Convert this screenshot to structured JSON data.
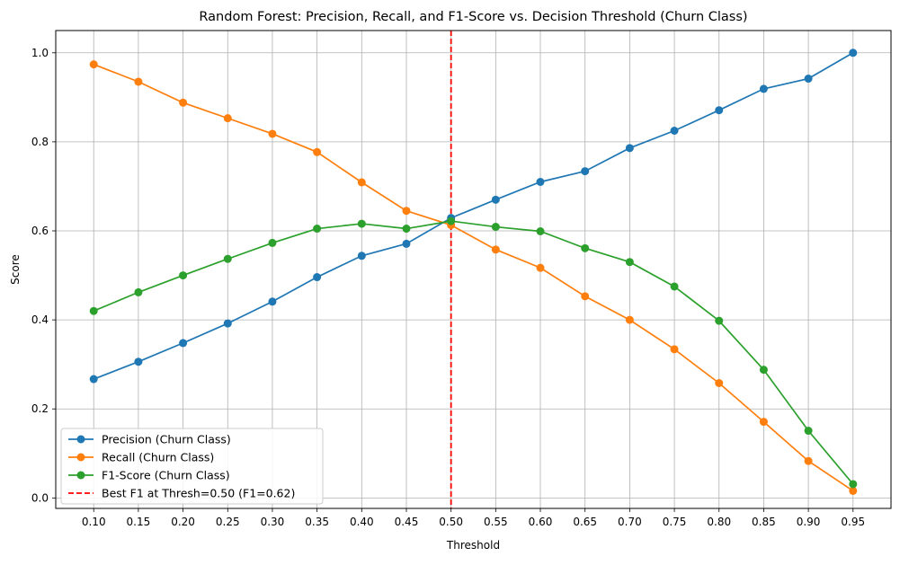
{
  "chart_data": {
    "type": "line",
    "title": "Random Forest: Precision, Recall, and F1-Score vs. Decision Threshold (Churn Class)",
    "xlabel": "Threshold",
    "ylabel": "Score",
    "x": [
      0.1,
      0.15,
      0.2,
      0.25,
      0.3,
      0.35,
      0.4,
      0.45,
      0.5,
      0.55,
      0.6,
      0.65,
      0.7,
      0.75,
      0.8,
      0.85,
      0.9,
      0.95
    ],
    "x_tick_labels": [
      "0.10",
      "0.15",
      "0.20",
      "0.25",
      "0.30",
      "0.35",
      "0.40",
      "0.45",
      "0.50",
      "0.55",
      "0.60",
      "0.65",
      "0.70",
      "0.75",
      "0.80",
      "0.85",
      "0.90",
      "0.95"
    ],
    "y_ticks": [
      0.0,
      0.2,
      0.4,
      0.6,
      0.8,
      1.0
    ],
    "y_tick_labels": [
      "0.0",
      "0.2",
      "0.4",
      "0.6",
      "0.8",
      "1.0"
    ],
    "xlim": [
      0.0575,
      0.9925
    ],
    "ylim": [
      -0.0235,
      1.05
    ],
    "grid": true,
    "legend_position": "lower-left",
    "series": [
      {
        "name": "Precision (Churn Class)",
        "color": "#1f77b4",
        "marker": "circle",
        "values": [
          0.267,
          0.306,
          0.348,
          0.392,
          0.441,
          0.496,
          0.544,
          0.571,
          0.629,
          0.67,
          0.71,
          0.734,
          0.786,
          0.825,
          0.871,
          0.919,
          0.942,
          1.0
        ]
      },
      {
        "name": "Recall (Churn Class)",
        "color": "#ff7f0e",
        "marker": "circle",
        "values": [
          0.974,
          0.935,
          0.888,
          0.853,
          0.818,
          0.777,
          0.709,
          0.645,
          0.613,
          0.558,
          0.517,
          0.453,
          0.4,
          0.334,
          0.258,
          0.171,
          0.083,
          0.016
        ]
      },
      {
        "name": "F1-Score (Churn Class)",
        "color": "#2ca02c",
        "marker": "circle",
        "values": [
          0.42,
          0.462,
          0.5,
          0.537,
          0.573,
          0.605,
          0.616,
          0.605,
          0.622,
          0.609,
          0.599,
          0.561,
          0.53,
          0.475,
          0.398,
          0.288,
          0.151,
          0.031
        ]
      }
    ],
    "reference_lines": [
      {
        "orientation": "vertical",
        "x": 0.5,
        "label": "Best F1 at Thresh=0.50 (F1=0.62)",
        "color": "#ff0000",
        "style": "dashed"
      }
    ]
  }
}
